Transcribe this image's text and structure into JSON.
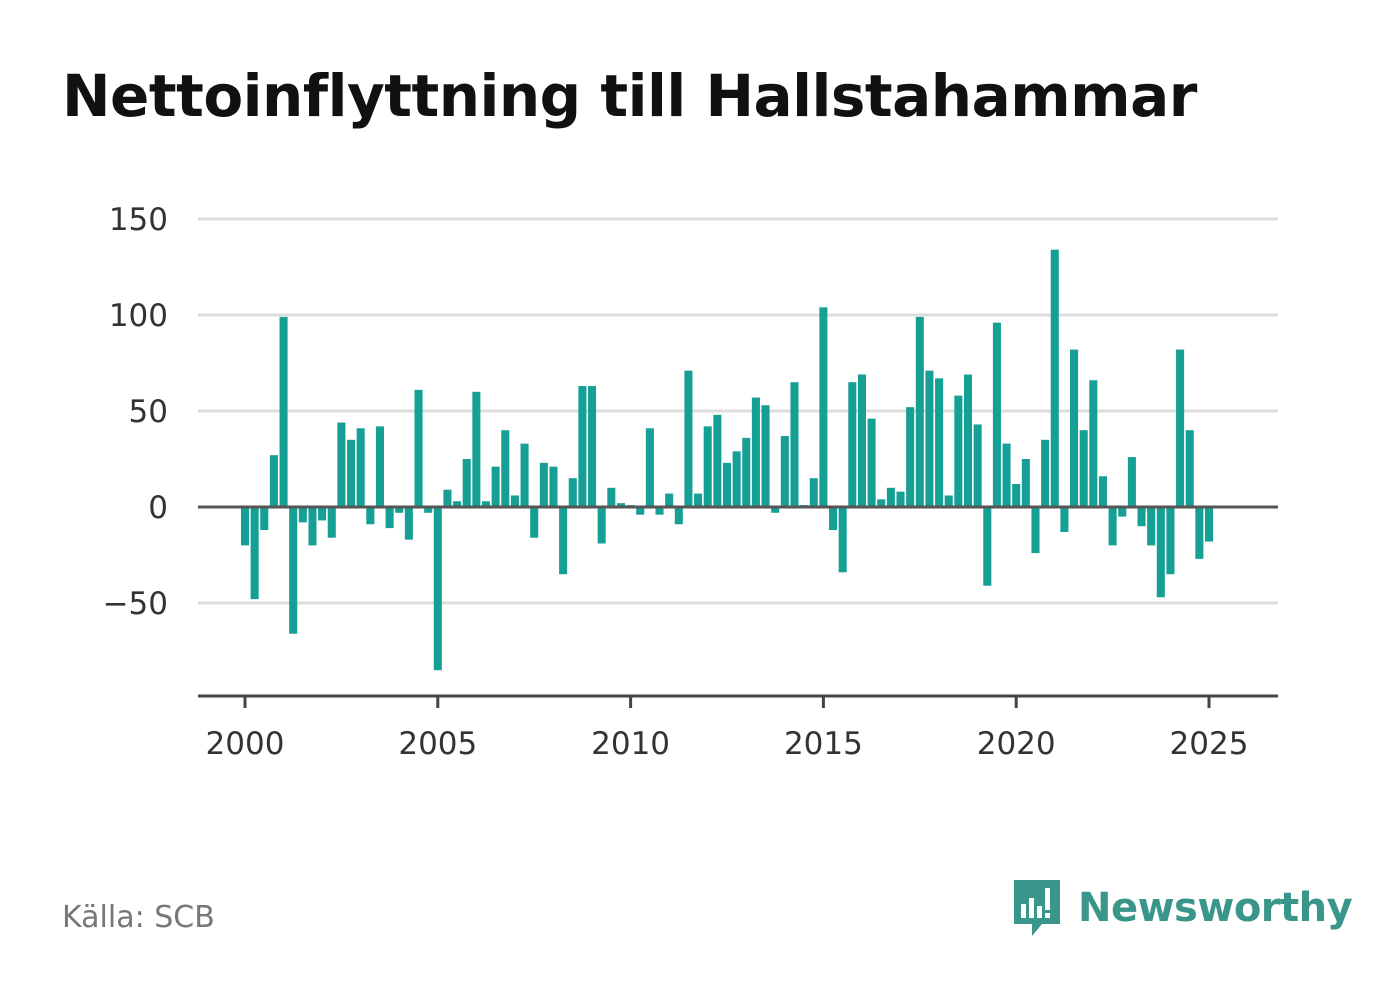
{
  "title": "Nettoinflyttning till Hallstahammar",
  "source": "Källa: SCB",
  "brand": {
    "name": "Newsworthy",
    "icon": "newsworthy-logo-icon",
    "color": "#3a968b"
  },
  "colors": {
    "bar": "#16a095",
    "zero_line": "#555555",
    "grid": "#dddddd",
    "axis": "#444444"
  },
  "chart_data": {
    "type": "bar",
    "title": "Nettoinflyttning till Hallstahammar",
    "xlabel": "",
    "ylabel": "",
    "x_ticks": [
      2000,
      2005,
      2010,
      2015,
      2020,
      2025
    ],
    "y_ticks": [
      -50,
      0,
      50,
      100,
      150
    ],
    "y_tick_labels": [
      "−50",
      "0",
      "50",
      "100",
      "150"
    ],
    "ylim": [
      -98,
      150
    ],
    "xlim": [
      1998.8,
      2026.8
    ],
    "grid": true,
    "frequency": "quarterly",
    "series": [
      {
        "start_year": 2000,
        "values": [
          -20,
          -48,
          -12,
          27,
          99,
          -66,
          -8,
          -20,
          -7,
          -16,
          44,
          35,
          41,
          -9,
          42,
          -11,
          -3,
          -17,
          61,
          -3,
          -85,
          9,
          3,
          25,
          60,
          3,
          21,
          40,
          6,
          33,
          -16,
          23,
          21,
          -35,
          15,
          63,
          63,
          -19,
          10,
          2,
          1,
          -4,
          41,
          -4,
          7,
          -9,
          71,
          7,
          42,
          48,
          23,
          29,
          36,
          57,
          53,
          -3,
          37,
          65,
          1,
          15,
          104,
          -12,
          -34,
          65,
          69,
          46,
          4,
          10,
          8,
          52,
          99,
          71,
          67,
          6,
          58,
          69,
          43,
          -41,
          96,
          33,
          12,
          25,
          -24,
          35,
          134,
          -13,
          82,
          40,
          66,
          16,
          -20,
          -5,
          26,
          -10,
          -20,
          -47,
          -35,
          82,
          40,
          -27,
          -18
        ]
      }
    ]
  }
}
